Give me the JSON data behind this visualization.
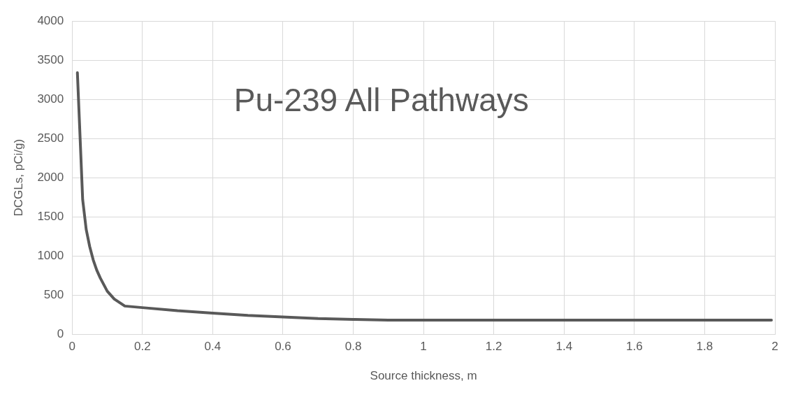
{
  "chart_data": {
    "type": "line",
    "title": "Pu-239 All Pathways",
    "xlabel": "Source thickness, m",
    "ylabel": "DCGLs, pCi/g)",
    "x": [
      0.015,
      0.03,
      0.04,
      0.05,
      0.06,
      0.07,
      0.08,
      0.1,
      0.12,
      0.15,
      0.2,
      0.3,
      0.4,
      0.5,
      0.6,
      0.7,
      0.8,
      0.9,
      1.0,
      1.5,
      1.99
    ],
    "series": [
      {
        "color": "#595959",
        "values": [
          3340,
          1720,
          1340,
          1120,
          950,
          820,
          720,
          550,
          450,
          360,
          340,
          300,
          270,
          240,
          220,
          200,
          190,
          180,
          180,
          180,
          180
        ]
      }
    ],
    "xlim": [
      0,
      2
    ],
    "xticks": [
      0,
      0.2,
      0.4,
      0.6,
      0.8,
      1,
      1.2,
      1.4,
      1.6,
      1.8,
      2
    ],
    "ylim": [
      0,
      4000
    ],
    "yticks": [
      0,
      500,
      1000,
      1500,
      2000,
      2500,
      3000,
      3500,
      4000
    ],
    "grid": true,
    "legend": false,
    "marker": "none",
    "line_style": "solid"
  }
}
